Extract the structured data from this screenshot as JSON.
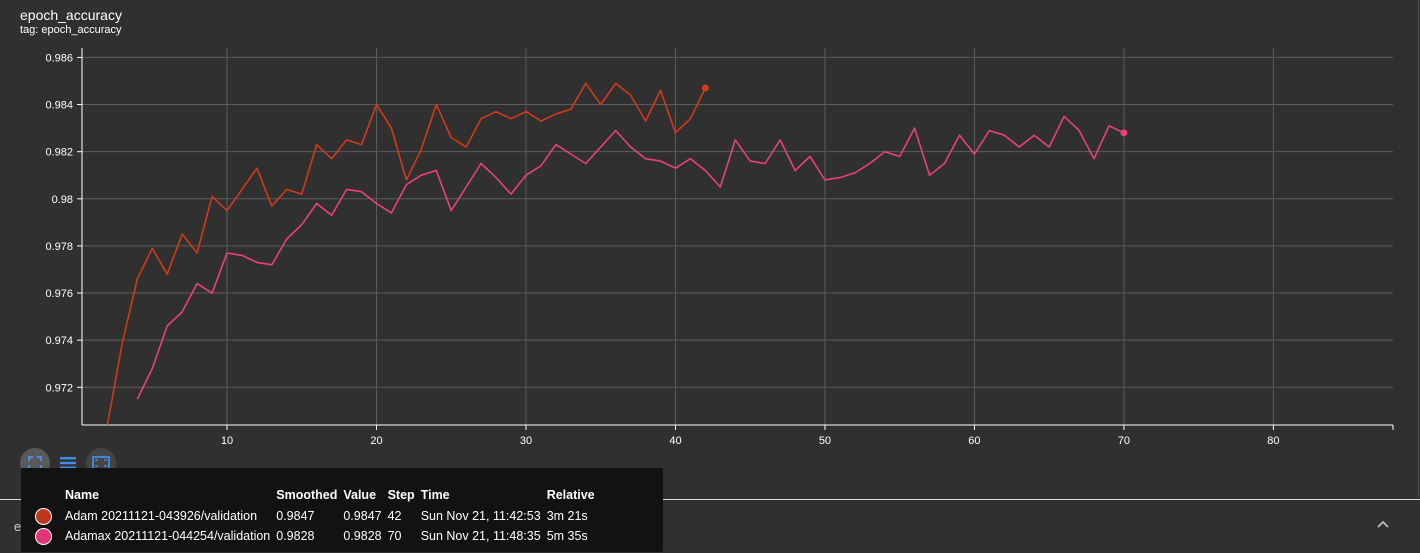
{
  "card": {
    "title": "epoch_accuracy",
    "tag": "tag: epoch_accuracy"
  },
  "chart_data": {
    "type": "line",
    "title": "epoch_accuracy",
    "xlabel": "",
    "ylabel": "",
    "xlim": [
      0.3,
      88
    ],
    "ylim": [
      0.9704,
      0.9864
    ],
    "x_ticks": [
      10,
      20,
      30,
      40,
      50,
      60,
      70,
      80
    ],
    "y_ticks": [
      0.972,
      0.974,
      0.976,
      0.978,
      0.98,
      0.982,
      0.984,
      0.986
    ],
    "y_tick_labels": [
      "0.972",
      "0.974",
      "0.976",
      "0.978",
      "0.98",
      "0.982",
      "0.984",
      "0.986"
    ],
    "grid": true,
    "series": [
      {
        "name": "Adam 20211121-043926/validation",
        "color": "#d13a1c",
        "x": [
          2,
          3,
          4,
          5,
          6,
          7,
          8,
          9,
          10,
          11,
          12,
          13,
          14,
          15,
          16,
          17,
          18,
          19,
          20,
          21,
          22,
          23,
          24,
          25,
          26,
          27,
          28,
          29,
          30,
          31,
          32,
          33,
          34,
          35,
          36,
          37,
          38,
          39,
          40,
          41,
          42
        ],
        "y": [
          0.9704,
          0.9739,
          0.9766,
          0.9779,
          0.9768,
          0.9785,
          0.9777,
          0.9801,
          0.9795,
          0.9804,
          0.9813,
          0.9797,
          0.9804,
          0.9802,
          0.9823,
          0.9817,
          0.9825,
          0.9823,
          0.984,
          0.983,
          0.9808,
          0.9821,
          0.984,
          0.9826,
          0.9822,
          0.9834,
          0.9837,
          0.9834,
          0.9837,
          0.9833,
          0.9836,
          0.9838,
          0.9849,
          0.984,
          0.9849,
          0.9844,
          0.9833,
          0.9846,
          0.9828,
          0.9834,
          0.9847
        ]
      },
      {
        "name": "Adamax 20211121-044254/validation",
        "color": "#e8427a",
        "x": [
          4,
          5,
          6,
          7,
          8,
          9,
          10,
          11,
          12,
          13,
          14,
          15,
          16,
          17,
          18,
          19,
          20,
          21,
          22,
          23,
          24,
          25,
          26,
          27,
          28,
          29,
          30,
          31,
          32,
          33,
          34,
          35,
          36,
          37,
          38,
          39,
          40,
          41,
          42,
          43,
          44,
          45,
          46,
          47,
          48,
          49,
          50,
          51,
          52,
          53,
          54,
          55,
          56,
          57,
          58,
          59,
          60,
          61,
          62,
          63,
          64,
          65,
          66,
          67,
          68,
          69,
          70
        ],
        "y": [
          0.9715,
          0.9728,
          0.9746,
          0.9752,
          0.9764,
          0.976,
          0.9777,
          0.9776,
          0.9773,
          0.9772,
          0.9783,
          0.9789,
          0.9798,
          0.9793,
          0.9804,
          0.9803,
          0.9798,
          0.9794,
          0.9806,
          0.981,
          0.9812,
          0.9795,
          0.9805,
          0.9815,
          0.9809,
          0.9802,
          0.981,
          0.9814,
          0.9823,
          0.9819,
          0.9815,
          0.9822,
          0.9829,
          0.9822,
          0.9817,
          0.9816,
          0.9813,
          0.9817,
          0.9812,
          0.9805,
          0.9825,
          0.9816,
          0.9815,
          0.9825,
          0.9812,
          0.9818,
          0.9808,
          0.9809,
          0.9811,
          0.9815,
          0.982,
          0.9818,
          0.983,
          0.981,
          0.9815,
          0.9827,
          0.9819,
          0.9829,
          0.9827,
          0.9822,
          0.9827,
          0.9822,
          0.9835,
          0.9829,
          0.9817,
          0.9831,
          0.9828
        ]
      }
    ]
  },
  "controls": [
    {
      "name": "fullscreen-toggle-button",
      "icon": "fullscreen-icon"
    },
    {
      "name": "toggle-log-scale-button",
      "icon": "log-scale-icon"
    },
    {
      "name": "fit-domain-button",
      "icon": "fit-domain-icon"
    }
  ],
  "tooltip": {
    "headers": {
      "name": "Name",
      "smoothed": "Smoothed",
      "value": "Value",
      "step": "Step",
      "time": "Time",
      "relative": "Relative"
    },
    "rows": [
      {
        "color": "#c0381c",
        "name": "Adam 20211121-043926/validation",
        "smoothed": "0.9847",
        "value": "0.9847",
        "step": "42",
        "time": "Sun Nov 21, 11:42:53",
        "relative": "3m 21s"
      },
      {
        "color": "#e0357a",
        "name": "Adamax 20211121-044254/validation",
        "smoothed": "0.9828",
        "value": "0.9828",
        "step": "70",
        "time": "Sun Nov 21, 11:48:35",
        "relative": "5m 35s"
      }
    ]
  },
  "next_card": {
    "label": "epoch_loss"
  }
}
